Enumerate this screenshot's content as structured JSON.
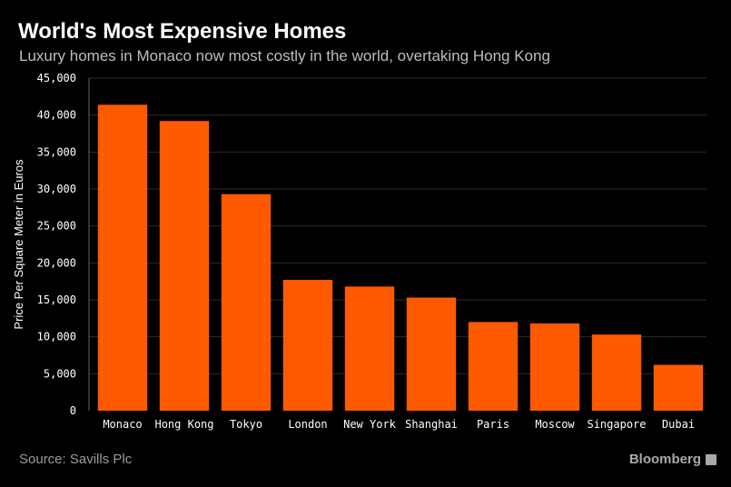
{
  "header": {
    "title": "World's Most Expensive Homes",
    "subtitle": "Luxury homes in Monaco now most costly in the world, overtaking Hong Kong"
  },
  "footer": {
    "source": "Source: Savills Plc",
    "logo": "Bloomberg"
  },
  "colors": {
    "bar": "#ff5a00",
    "background": "#000000",
    "grid": "#2b2b2b",
    "text": "#ffffff"
  },
  "chart_data": {
    "type": "bar",
    "title": "World's Most Expensive Homes",
    "subtitle": "Luxury homes in Monaco now most costly in the world, overtaking Hong Kong",
    "xlabel": "",
    "ylabel": "Price Per Square Meter in Euros",
    "categories": [
      "Monaco",
      "Hong Kong",
      "Tokyo",
      "London",
      "New York",
      "Shanghai",
      "Paris",
      "Moscow",
      "Singapore",
      "Dubai"
    ],
    "values": [
      41400,
      39200,
      29300,
      17700,
      16800,
      15300,
      12000,
      11800,
      10300,
      6200
    ],
    "ylim": [
      0,
      45000
    ],
    "yticks": [
      0,
      5000,
      10000,
      15000,
      20000,
      25000,
      30000,
      35000,
      40000,
      45000
    ],
    "ytick_labels": [
      "0",
      "5,000",
      "10,000",
      "15,000",
      "20,000",
      "25,000",
      "30,000",
      "35,000",
      "40,000",
      "45,000"
    ],
    "grid": true,
    "legend": "none"
  }
}
